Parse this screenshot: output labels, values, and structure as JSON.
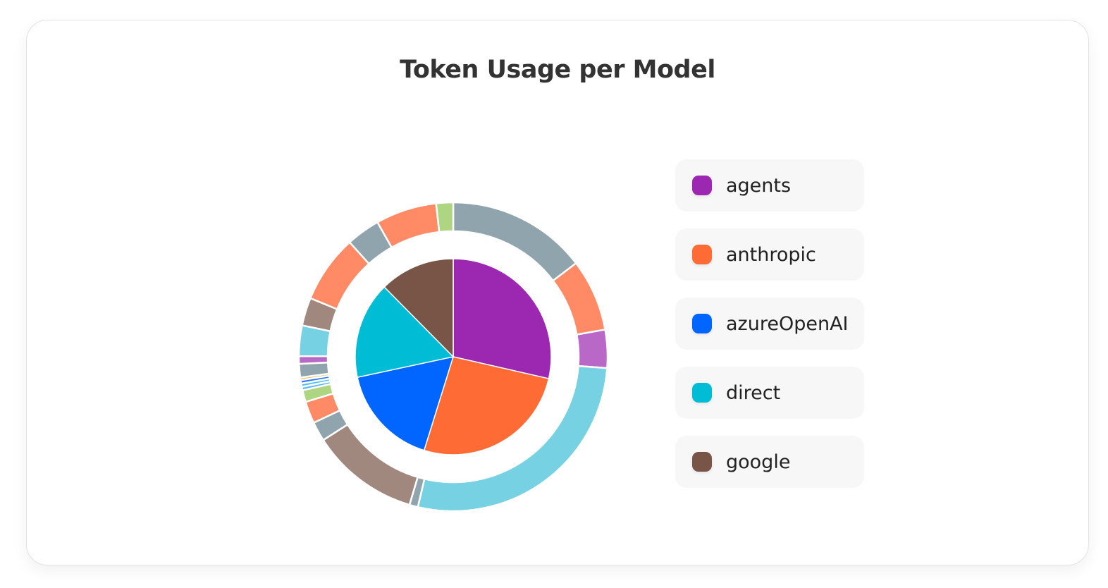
{
  "chart_data": {
    "type": "pie",
    "title": "Token Usage per Model",
    "legend_position": "right",
    "legend": [
      {
        "name": "agents",
        "color": "#9c27b0"
      },
      {
        "name": "anthropic",
        "color": "#ff6b35"
      },
      {
        "name": "azureOpenAI",
        "color": "#0066ff"
      },
      {
        "name": "direct",
        "color": "#00bcd4"
      },
      {
        "name": "google",
        "color": "#795548"
      }
    ],
    "inner": {
      "categories": [
        "agents",
        "anthropic",
        "azureOpenAI",
        "direct",
        "google"
      ],
      "values": [
        26.5,
        24.3,
        15.6,
        14.8,
        11.5
      ],
      "colors": [
        "#9c27b0",
        "#ff6b35",
        "#0066ff",
        "#00bcd4",
        "#795548"
      ]
    },
    "outer": {
      "values": [
        16.5,
        8.5,
        4.5,
        31.0,
        1.0,
        12.8,
        2.3,
        2.6,
        1.4,
        0.4,
        0.4,
        0.4,
        0.3,
        1.6,
        0.9,
        3.6,
        3.3,
        8.0,
        4.0,
        7.2,
        2.0
      ],
      "colors": [
        "#90a4ae",
        "#ff8a65",
        "#ba68c8",
        "#76d1e3",
        "#90a4ae",
        "#a1887f",
        "#90a4ae",
        "#ff8a65",
        "#aed581",
        "#64b5f6",
        "#4fc3f7",
        "#2979ff",
        "#ffb74d",
        "#90a4ae",
        "#ba68c8",
        "#76d1e3",
        "#a1887f",
        "#ff8a65",
        "#90a4ae",
        "#ff8a65",
        "#aed581"
      ]
    }
  }
}
